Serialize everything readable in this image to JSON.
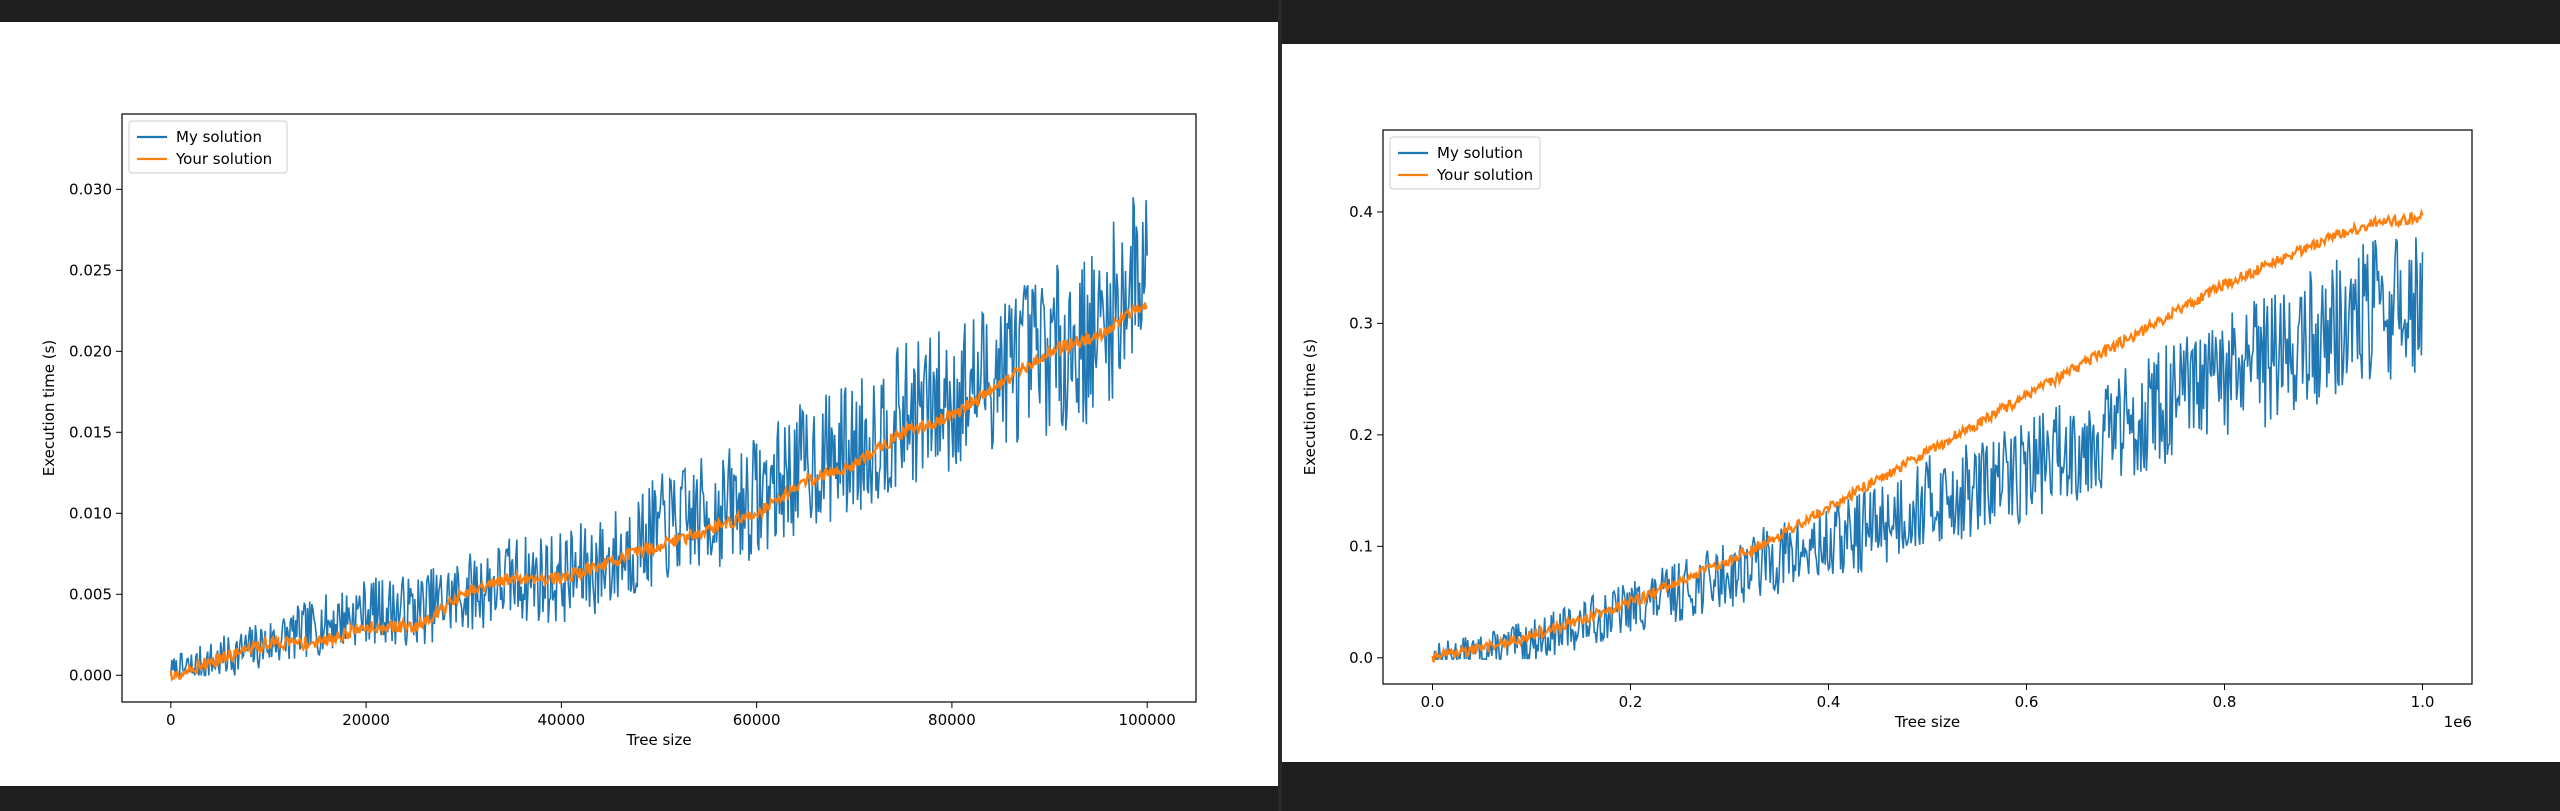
{
  "colors": {
    "my": "#1f77b4",
    "your": "#ff7f0e"
  },
  "chart_data": [
    {
      "type": "line",
      "title": "",
      "xlabel": "Tree size",
      "ylabel": "Execution time (s)",
      "xlim": [
        -5000,
        105000
      ],
      "ylim": [
        -0.00165,
        0.03465
      ],
      "xticks": [
        0,
        20000,
        40000,
        60000,
        80000,
        100000
      ],
      "xtick_labels": [
        "0",
        "20000",
        "40000",
        "60000",
        "80000",
        "100000"
      ],
      "yticks": [
        0.0,
        0.005,
        0.01,
        0.015,
        0.02,
        0.025,
        0.03
      ],
      "ytick_labels": [
        "0.000",
        "0.005",
        "0.010",
        "0.015",
        "0.020",
        "0.025",
        "0.030"
      ],
      "x_offset_label": "",
      "legend": "upper-left",
      "grid": false,
      "series": [
        {
          "name": "My solution",
          "x": [
            0,
            5000,
            10000,
            15000,
            20000,
            25000,
            30000,
            35000,
            40000,
            45000,
            50000,
            55000,
            60000,
            65000,
            70000,
            75000,
            80000,
            85000,
            90000,
            95000,
            100000
          ],
          "y": [
            0.0,
            0.001,
            0.002,
            0.003,
            0.004,
            0.004,
            0.005,
            0.006,
            0.006,
            0.007,
            0.009,
            0.01,
            0.011,
            0.013,
            0.014,
            0.016,
            0.017,
            0.019,
            0.02,
            0.021,
            0.026
          ]
        },
        {
          "name": "Your solution",
          "x": [
            0,
            5000,
            10000,
            15000,
            20000,
            25000,
            30000,
            35000,
            40000,
            45000,
            50000,
            55000,
            60000,
            65000,
            70000,
            75000,
            80000,
            85000,
            90000,
            95000,
            100000
          ],
          "y": [
            0.0,
            0.001,
            0.002,
            0.002,
            0.003,
            0.003,
            0.005,
            0.006,
            0.006,
            0.007,
            0.008,
            0.009,
            0.01,
            0.012,
            0.013,
            0.015,
            0.016,
            0.018,
            0.02,
            0.021,
            0.023
          ]
        }
      ]
    },
    {
      "type": "line",
      "title": "",
      "xlabel": "Tree size",
      "ylabel": "Execution time (s)",
      "xlim": [
        -0.05,
        1.05
      ],
      "ylim": [
        -0.0235,
        0.4735
      ],
      "xticks": [
        0.0,
        0.2,
        0.4,
        0.6,
        0.8,
        1.0
      ],
      "xtick_labels": [
        "0.0",
        "0.2",
        "0.4",
        "0.6",
        "0.8",
        "1.0"
      ],
      "yticks": [
        0.0,
        0.1,
        0.2,
        0.3,
        0.4
      ],
      "ytick_labels": [
        "0.0",
        "0.1",
        "0.2",
        "0.3",
        "0.4"
      ],
      "x_offset_label": "1e6",
      "legend": "upper-left",
      "grid": false,
      "series": [
        {
          "name": "My solution",
          "x": [
            0.0,
            0.05,
            0.1,
            0.15,
            0.2,
            0.25,
            0.3,
            0.35,
            0.4,
            0.45,
            0.5,
            0.55,
            0.6,
            0.65,
            0.7,
            0.75,
            0.8,
            0.85,
            0.9,
            0.95,
            1.0
          ],
          "y": [
            0.0,
            0.005,
            0.015,
            0.03,
            0.045,
            0.06,
            0.075,
            0.09,
            0.1,
            0.12,
            0.14,
            0.15,
            0.17,
            0.19,
            0.21,
            0.23,
            0.25,
            0.27,
            0.29,
            0.31,
            0.32
          ]
        },
        {
          "name": "Your solution",
          "x": [
            0.0,
            0.05,
            0.1,
            0.15,
            0.2,
            0.25,
            0.3,
            0.35,
            0.4,
            0.45,
            0.5,
            0.55,
            0.6,
            0.65,
            0.7,
            0.75,
            0.8,
            0.85,
            0.9,
            0.95,
            1.0
          ],
          "y": [
            0.0,
            0.008,
            0.02,
            0.034,
            0.05,
            0.068,
            0.088,
            0.11,
            0.135,
            0.16,
            0.185,
            0.21,
            0.235,
            0.26,
            0.285,
            0.31,
            0.335,
            0.355,
            0.375,
            0.39,
            0.395
          ]
        }
      ]
    }
  ]
}
